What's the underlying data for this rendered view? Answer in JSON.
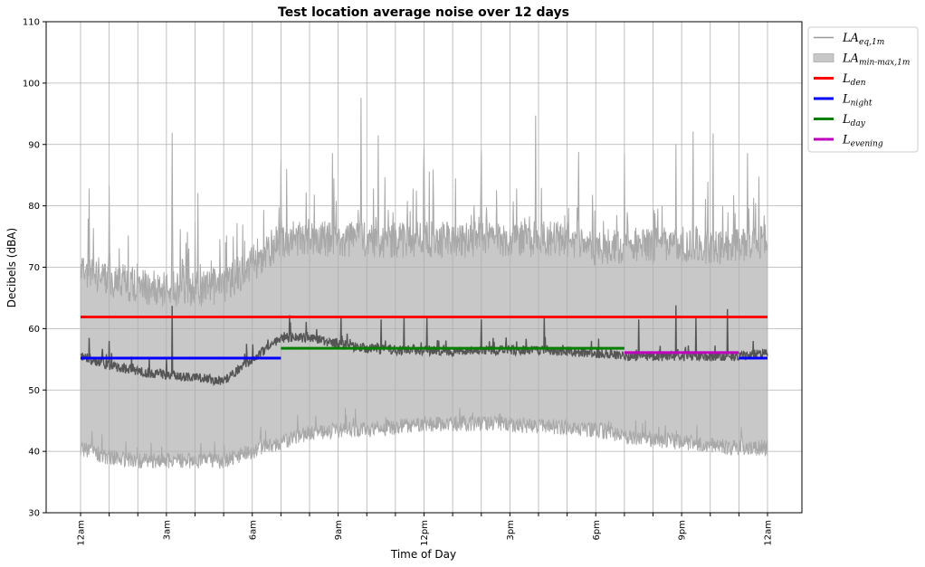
{
  "chart_data": {
    "type": "line",
    "title": "Test location average noise over 12 days",
    "xlabel": "Time of Day",
    "ylabel": "Decibels (dBA)",
    "xlim": [
      0,
      24
    ],
    "ylim": [
      30,
      110
    ],
    "x_ticks": [
      {
        "hour": 0,
        "label": "12am"
      },
      {
        "hour": 3,
        "label": "3am"
      },
      {
        "hour": 6,
        "label": "6am"
      },
      {
        "hour": 9,
        "label": "9am"
      },
      {
        "hour": 12,
        "label": "12pm"
      },
      {
        "hour": 15,
        "label": "3pm"
      },
      {
        "hour": 18,
        "label": "6pm"
      },
      {
        "hour": 21,
        "label": "9pm"
      },
      {
        "hour": 24,
        "label": "12am"
      }
    ],
    "x_minor_ticks": [
      1,
      2,
      4,
      5,
      7,
      8,
      10,
      11,
      13,
      14,
      16,
      17,
      19,
      20,
      22,
      23
    ],
    "y_ticks": [
      30,
      40,
      50,
      60,
      70,
      80,
      90,
      100,
      110
    ],
    "grid": true,
    "legend_position": "outside-right-top",
    "series": [
      {
        "name": "LAeq,1m",
        "legend_main": "LA",
        "legend_sub": "eq,1m",
        "color": "#555555",
        "type": "line",
        "x": [
          0,
          1,
          2,
          3,
          4,
          5,
          6,
          7,
          8,
          9,
          10,
          11,
          12,
          13,
          14,
          15,
          16,
          17,
          18,
          19,
          20,
          21,
          22,
          23,
          24
        ],
        "y": [
          55.5,
          54.0,
          53.0,
          52.5,
          52.0,
          51.5,
          55.0,
          58.5,
          58.5,
          57.5,
          56.8,
          56.5,
          56.5,
          56.3,
          56.5,
          56.5,
          56.5,
          56.3,
          56.0,
          55.5,
          55.5,
          55.5,
          55.5,
          55.5,
          56.0
        ],
        "spikes": [
          [
            0.3,
            58.5
          ],
          [
            1.0,
            58.0
          ],
          [
            3.2,
            63.7
          ],
          [
            5.8,
            57.5
          ],
          [
            7.3,
            62.2
          ],
          [
            9.1,
            62.0
          ],
          [
            10.5,
            61.5
          ],
          [
            11.3,
            62.0
          ],
          [
            12.1,
            61.8
          ],
          [
            14.0,
            61.5
          ],
          [
            16.2,
            62.0
          ],
          [
            19.5,
            61.5
          ],
          [
            20.8,
            63.8
          ],
          [
            21.5,
            62.0
          ],
          [
            22.6,
            63.2
          ],
          [
            23.5,
            58.0
          ]
        ]
      },
      {
        "name": "LAmin-max,1m",
        "legend_main": "LA",
        "legend_sub": "min-max,1m",
        "color": "#c8c8c8",
        "type": "area",
        "x": [
          0,
          1,
          2,
          3,
          4,
          5,
          6,
          7,
          8,
          9,
          10,
          11,
          12,
          13,
          14,
          15,
          16,
          17,
          18,
          19,
          20,
          21,
          22,
          23,
          24
        ],
        "min": [
          40.5,
          39.0,
          38.5,
          38.5,
          38.5,
          38.5,
          40.0,
          41.5,
          43.0,
          43.5,
          43.5,
          44.0,
          44.5,
          44.5,
          44.5,
          44.5,
          44.0,
          44.0,
          43.5,
          42.5,
          42.0,
          41.5,
          41.0,
          40.5,
          40.5
        ],
        "max": [
          69.0,
          68.0,
          67.0,
          66.5,
          66.5,
          67.0,
          70.5,
          74.5,
          75.0,
          74.5,
          74.5,
          74.5,
          74.5,
          74.5,
          74.5,
          74.5,
          74.5,
          74.5,
          73.0,
          73.5,
          73.5,
          73.5,
          73.5,
          73.5,
          74.0
        ],
        "spikes": [
          [
            0.3,
            82.8
          ],
          [
            1.0,
            83.3
          ],
          [
            3.2,
            91.9
          ],
          [
            4.1,
            82.1
          ],
          [
            7.0,
            87.5
          ],
          [
            8.8,
            88.6
          ],
          [
            9.8,
            97.6
          ],
          [
            10.4,
            91.5
          ],
          [
            12.0,
            89.5
          ],
          [
            14.0,
            89.0
          ],
          [
            15.9,
            94.7
          ],
          [
            17.4,
            88.8
          ],
          [
            19.0,
            88.6
          ],
          [
            20.8,
            90.1
          ],
          [
            21.4,
            92.1
          ],
          [
            22.1,
            91.8
          ],
          [
            23.3,
            88.6
          ]
        ]
      },
      {
        "name": "Lden",
        "legend_main": "L",
        "legend_sub": "den",
        "color": "#ff0000",
        "type": "step",
        "x_start": 0,
        "x_end": 24,
        "value": 61.9
      },
      {
        "name": "Lnight",
        "legend_main": "L",
        "legend_sub": "night",
        "color": "#0000ff",
        "type": "step",
        "segments": [
          {
            "x_start": 0,
            "x_end": 7,
            "value": 55.2
          },
          {
            "x_start": 23,
            "x_end": 24,
            "value": 55.2
          }
        ]
      },
      {
        "name": "Lday",
        "legend_main": "L",
        "legend_sub": "day",
        "color": "#008000",
        "type": "step",
        "x_start": 7,
        "x_end": 19,
        "value": 56.8
      },
      {
        "name": "Levening",
        "legend_main": "L",
        "legend_sub": "evening",
        "color": "#bf00bf",
        "type": "step",
        "x_start": 19,
        "x_end": 23,
        "value": 56.1
      }
    ]
  }
}
